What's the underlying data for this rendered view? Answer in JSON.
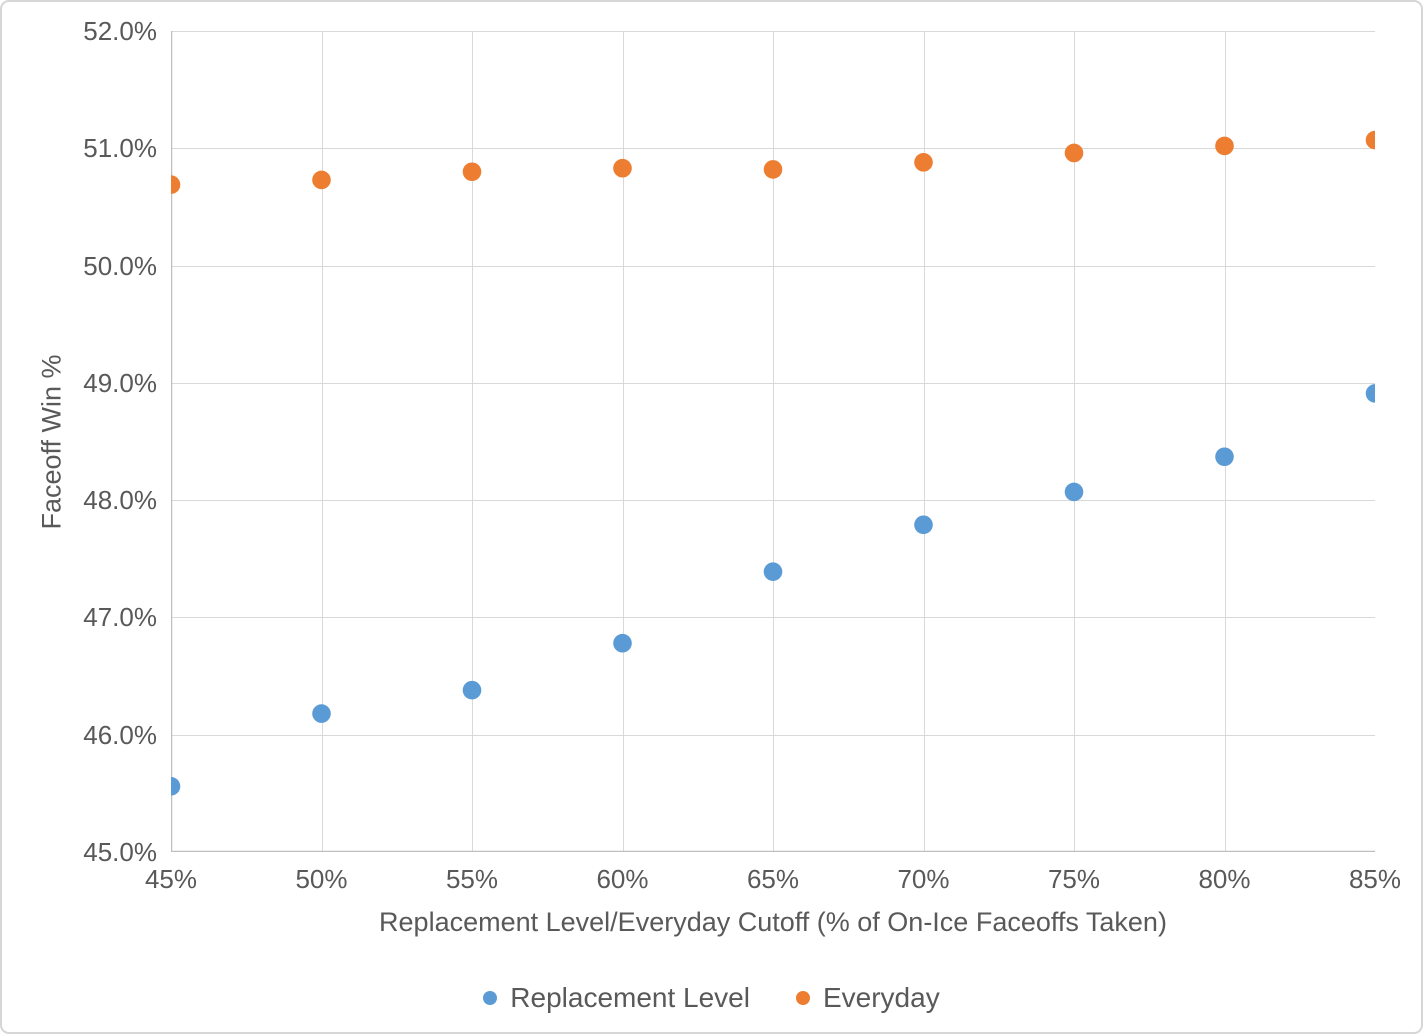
{
  "chart_data": {
    "type": "scatter",
    "categories": [
      "45%",
      "50%",
      "55%",
      "60%",
      "65%",
      "70%",
      "75%",
      "80%",
      "85%"
    ],
    "x_values": [
      45,
      50,
      55,
      60,
      65,
      70,
      75,
      80,
      85
    ],
    "series": [
      {
        "name": "Replacement Level",
        "color": "#5B9BD5",
        "values": [
          45.56,
          46.18,
          46.38,
          46.78,
          47.39,
          47.79,
          48.07,
          48.37,
          48.91
        ]
      },
      {
        "name": "Everyday",
        "color": "#ED7D31",
        "values": [
          50.69,
          50.73,
          50.8,
          50.83,
          50.82,
          50.88,
          50.96,
          51.02,
          51.07
        ]
      }
    ],
    "title": "",
    "xlabel": "Replacement Level/Everyday Cutoff (% of On-Ice Faceoffs Taken)",
    "ylabel": "Faceoff Win %",
    "y_ticks": [
      "45.0%",
      "46.0%",
      "47.0%",
      "48.0%",
      "49.0%",
      "50.0%",
      "51.0%",
      "52.0%"
    ],
    "ylim": [
      45.0,
      52.0
    ],
    "xlim": [
      45,
      85
    ],
    "grid": true,
    "legend_position": "bottom",
    "colors": {
      "text": "#595959",
      "gridline": "#D9D9D9",
      "axis_line": "#BFBFBF",
      "background": "#FFFFFF"
    }
  }
}
